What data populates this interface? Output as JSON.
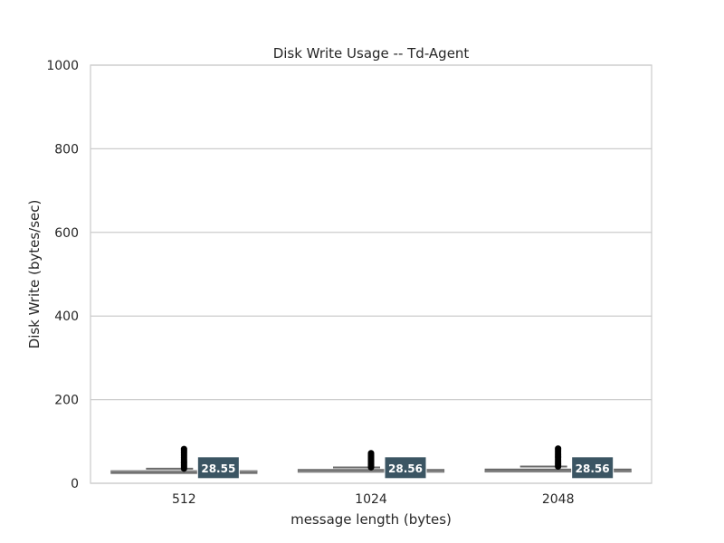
{
  "chart_data": {
    "type": "box",
    "title": "Disk Write Usage -- Td-Agent",
    "xlabel": "message length (bytes)",
    "ylabel": "Disk Write (bytes/sec)",
    "ylim": [
      0,
      1000
    ],
    "yticks": [
      "0",
      "200",
      "400",
      "600",
      "800",
      "1000"
    ],
    "categories": [
      "512",
      "1024",
      "2048"
    ],
    "grid": true,
    "boxes": [
      {
        "category": "512",
        "min": 24,
        "q1": 27,
        "median": 28.55,
        "q3": 30,
        "max": 35,
        "outlier_max": 82,
        "median_label": "28.55"
      },
      {
        "category": "1024",
        "min": 24,
        "q1": 27,
        "median": 28.56,
        "q3": 33,
        "max": 38,
        "outlier_max": 72,
        "median_label": "28.56"
      },
      {
        "category": "2048",
        "min": 24,
        "q1": 27,
        "median": 28.56,
        "q3": 34,
        "max": 40,
        "outlier_max": 83,
        "median_label": "28.56"
      }
    ],
    "colors": {
      "box": "#6b6b6b",
      "outlier": "#000000",
      "label_bg": "#3b5563",
      "grid": "#cccccc"
    }
  }
}
